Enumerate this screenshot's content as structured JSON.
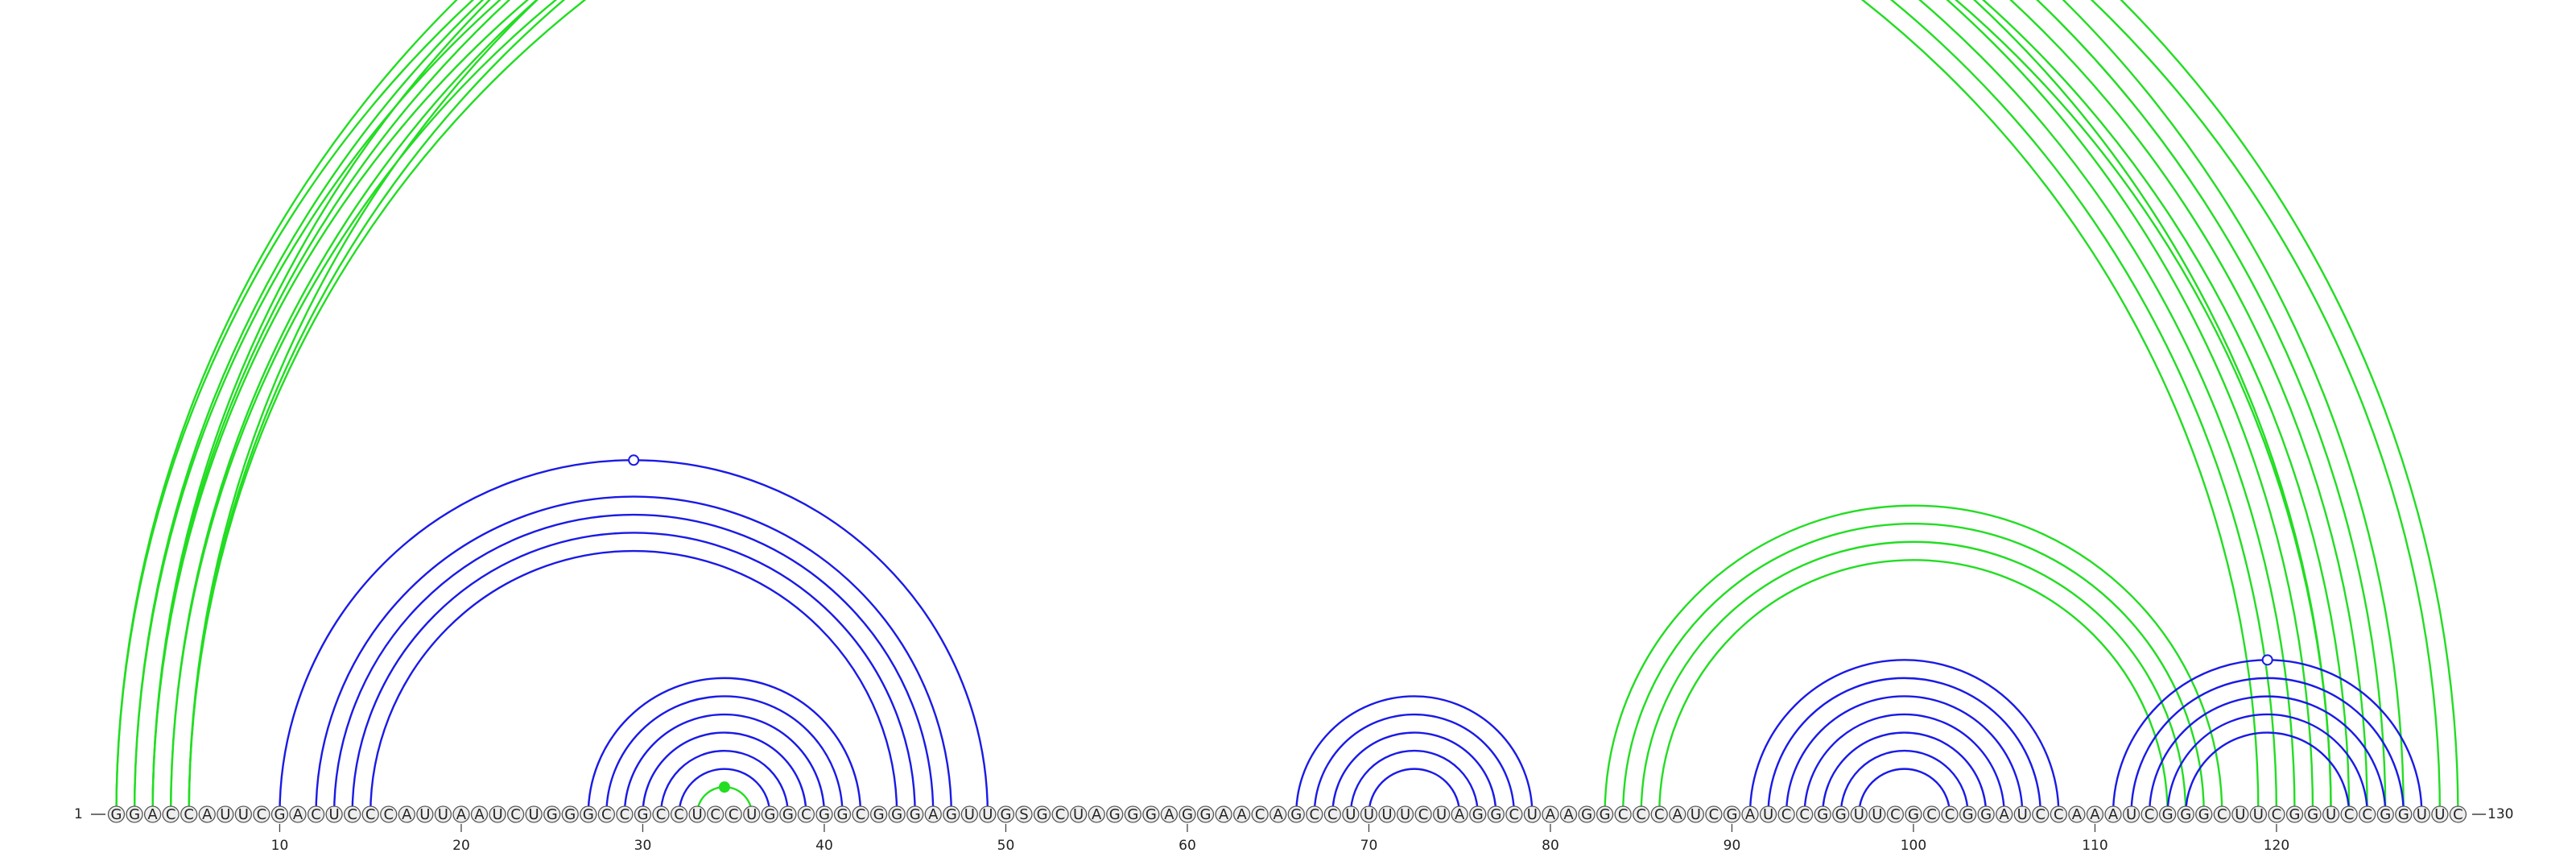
{
  "diagram": {
    "type": "rna-arc-diagram",
    "sequence": "GGACCAUUCGACUCCCAUUAAUCUGGGCCGCCUCCUGGCGGCGGGAGUUGSGCUAGGGAGGAACAGCCUUUUCUAGGCUAAGGCCCAUCGAUCCGGUUCGCCGGAUCCAAAUCGGGCUUCGGUCCGGUUC",
    "length": 130,
    "start_label": "1",
    "end_label": "130",
    "ticks": [
      10,
      20,
      30,
      40,
      50,
      60,
      70,
      80,
      90,
      100,
      110,
      120
    ],
    "colors": {
      "blue": "#1a1ae6",
      "green": "#22dd22",
      "nucleotide_fill": "#eeeeee",
      "nucleotide_stroke": "#555555",
      "text": "#222222"
    },
    "arc_groups": [
      {
        "color": "green",
        "side": "top",
        "pairs": [
          [
            1,
            123
          ],
          [
            2,
            122
          ],
          [
            3,
            121
          ],
          [
            4,
            120
          ],
          [
            5,
            119
          ]
        ]
      },
      {
        "color": "green",
        "side": "top",
        "pairs": [
          [
            3,
            130
          ],
          [
            5,
            129
          ]
        ]
      },
      {
        "color": "green",
        "side": "top",
        "pairs": [
          [
            1,
            127
          ],
          [
            2,
            126
          ],
          [
            3,
            125
          ],
          [
            4,
            124
          ],
          [
            5,
            123
          ]
        ]
      },
      {
        "color": "blue",
        "side": "top",
        "pairs": [
          [
            10,
            49
          ],
          [
            12,
            47
          ],
          [
            13,
            46
          ],
          [
            14,
            45
          ],
          [
            15,
            44
          ]
        ]
      },
      {
        "color": "blue",
        "side": "top",
        "pairs": [
          [
            27,
            42
          ],
          [
            28,
            41
          ],
          [
            29,
            40
          ],
          [
            30,
            39
          ],
          [
            31,
            38
          ],
          [
            32,
            37
          ]
        ]
      },
      {
        "color": "green",
        "side": "top",
        "pairs": [
          [
            33,
            36
          ]
        ]
      },
      {
        "color": "blue",
        "side": "top",
        "pairs": [
          [
            66,
            79
          ],
          [
            67,
            78
          ],
          [
            68,
            77
          ],
          [
            69,
            76
          ],
          [
            70,
            75
          ]
        ]
      },
      {
        "color": "green",
        "side": "top",
        "pairs": [
          [
            83,
            117
          ],
          [
            84,
            116
          ],
          [
            85,
            115
          ],
          [
            86,
            114
          ]
        ]
      },
      {
        "color": "blue",
        "side": "top",
        "pairs": [
          [
            91,
            108
          ],
          [
            92,
            107
          ],
          [
            93,
            106
          ],
          [
            94,
            105
          ],
          [
            95,
            104
          ],
          [
            96,
            103
          ],
          [
            97,
            102
          ]
        ]
      },
      {
        "color": "blue",
        "side": "top",
        "pairs": [
          [
            111,
            128
          ],
          [
            112,
            127
          ],
          [
            113,
            126
          ],
          [
            114,
            125
          ],
          [
            115,
            124
          ]
        ]
      }
    ],
    "markers": [
      {
        "at": 65.5,
        "color": "green",
        "filled": false
      },
      {
        "at": 29.5,
        "color": "blue",
        "filled": false
      },
      {
        "at": 34.5,
        "color": "green",
        "filled": true
      },
      {
        "at": 98.5,
        "color": "blue",
        "filled": false
      },
      {
        "at": 119.5,
        "color": "blue",
        "filled": false
      }
    ]
  }
}
